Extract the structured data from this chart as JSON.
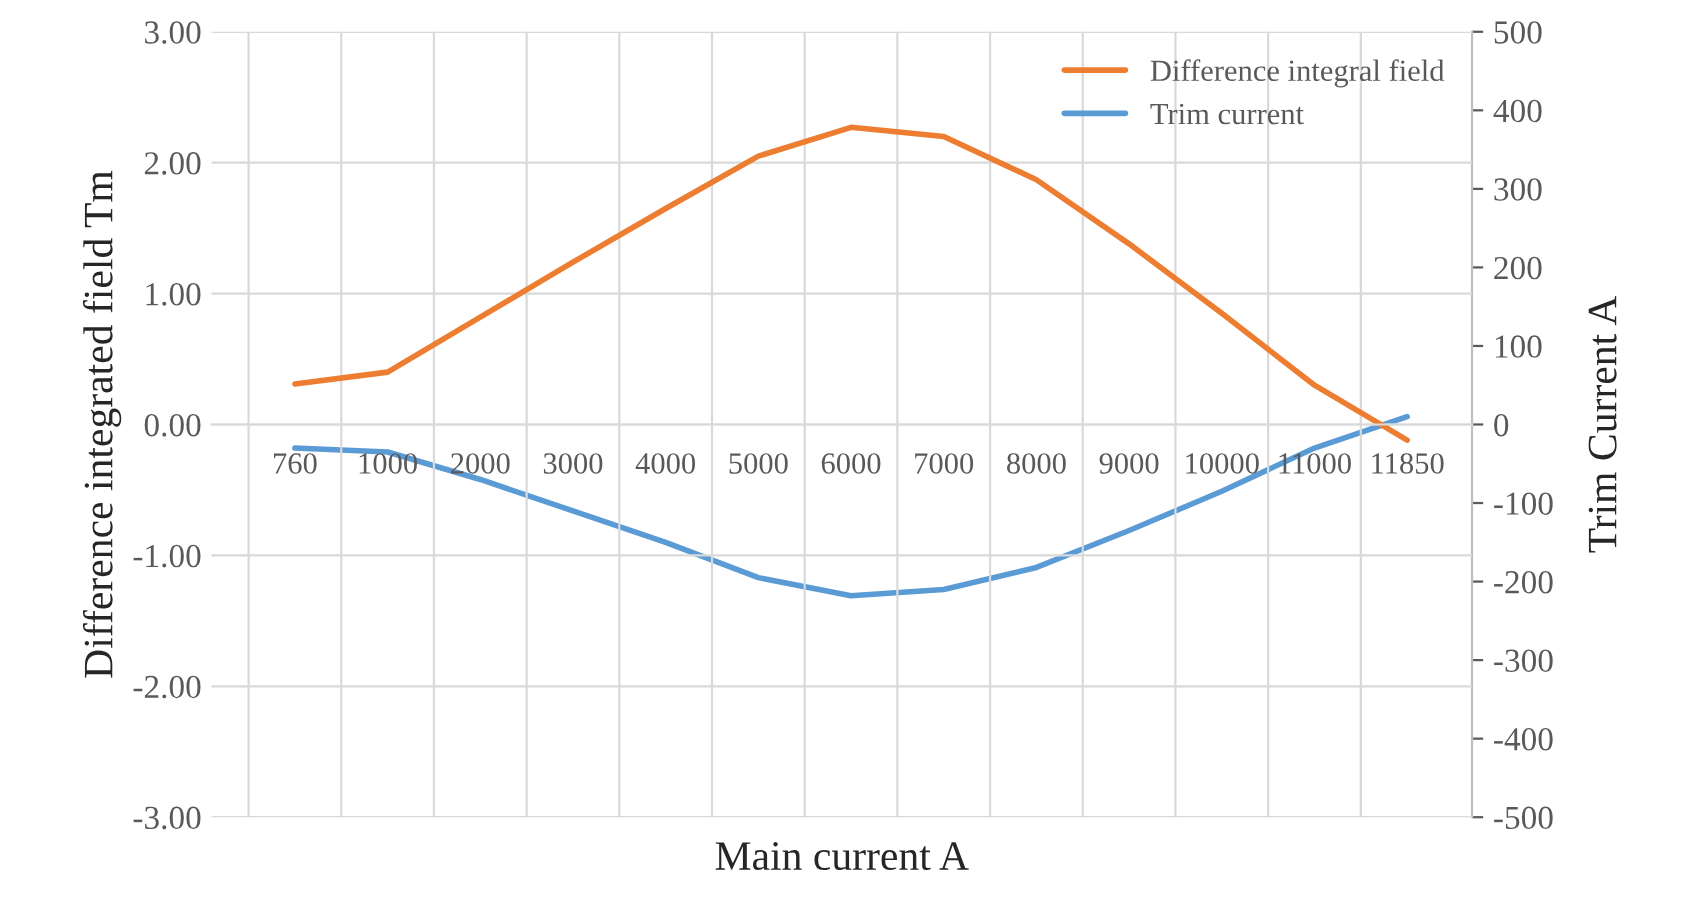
{
  "chart_data": {
    "type": "line",
    "xlabel": "Main current A",
    "ylabel": "Difference integrated field Tm",
    "y2label": "Trim Current A",
    "categories": [
      "760",
      "1000",
      "2000",
      "3000",
      "4000",
      "5000",
      "6000",
      "7000",
      "8000",
      "9000",
      "10000",
      "11000",
      "11850"
    ],
    "series": [
      {
        "name": "Difference integral field",
        "color": "#ed7d31",
        "values": [
          0.31,
          0.4,
          0.82,
          1.24,
          1.65,
          2.05,
          2.27,
          2.2,
          1.87,
          1.38,
          0.85,
          0.3,
          -0.12
        ]
      },
      {
        "name": "Trim current",
        "color": "#5b9bd5",
        "axis": "y2",
        "values": [
          -30,
          -35,
          -70,
          -110,
          -150,
          -195,
          -218,
          -210,
          -182,
          -135,
          -85,
          -30,
          10
        ]
      }
    ],
    "ylim": [
      -3,
      3
    ],
    "yticks": [
      {
        "value": -3,
        "label": "-3.00"
      },
      {
        "value": -2,
        "label": "-2.00"
      },
      {
        "value": -1,
        "label": "-1.00"
      },
      {
        "value": 0,
        "label": "0.00"
      },
      {
        "value": 1,
        "label": "1.00"
      },
      {
        "value": 2,
        "label": "2.00"
      },
      {
        "value": 3,
        "label": "3.00"
      }
    ],
    "y2lim": [
      -500,
      500
    ],
    "y2ticks": [
      -500,
      -400,
      -300,
      -200,
      -100,
      0,
      100,
      200,
      300,
      400,
      500
    ],
    "grid": true,
    "legend": "top right",
    "marker": "none",
    "line_style": "solid"
  }
}
